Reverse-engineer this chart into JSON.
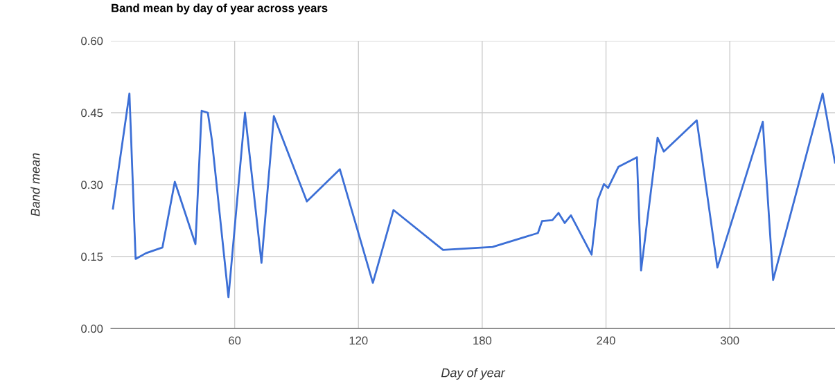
{
  "chart_data": {
    "type": "line",
    "title": "Band mean by day of year across years",
    "xlabel": "Day of year",
    "ylabel": "Band mean",
    "x": [
      1,
      9,
      12,
      17,
      25,
      31,
      41,
      44,
      47,
      49,
      57,
      65,
      73,
      79,
      95,
      111,
      127,
      137,
      161,
      185,
      207,
      209,
      214,
      217,
      220,
      223,
      233,
      236,
      239,
      241,
      246,
      255,
      257,
      265,
      268,
      284,
      294,
      316,
      321,
      345,
      351
    ],
    "series": [
      {
        "color": "#3c6fd6",
        "values": [
          0.25,
          0.49,
          0.145,
          0.157,
          0.169,
          0.306,
          0.176,
          0.454,
          0.45,
          0.392,
          0.065,
          0.45,
          0.137,
          0.443,
          0.265,
          0.332,
          0.095,
          0.247,
          0.164,
          0.17,
          0.199,
          0.224,
          0.226,
          0.241,
          0.22,
          0.236,
          0.154,
          0.268,
          0.301,
          0.293,
          0.337,
          0.357,
          0.121,
          0.398,
          0.369,
          0.434,
          0.127,
          0.431,
          0.101,
          0.49,
          0.346
        ]
      }
    ],
    "xlim": [
      0,
      351
    ],
    "xticks": [
      60,
      120,
      180,
      240,
      300
    ],
    "ylim": [
      0,
      0.6
    ],
    "yticks": [
      {
        "value": 0,
        "label": "0.00"
      },
      {
        "value": 0.15,
        "label": "0.15"
      },
      {
        "value": 0.3,
        "label": "0.30"
      },
      {
        "value": 0.45,
        "label": "0.45"
      },
      {
        "value": 0.6,
        "label": "0.60"
      }
    ],
    "grid": true,
    "legend": false,
    "marker": "none",
    "line_style": "solid"
  }
}
